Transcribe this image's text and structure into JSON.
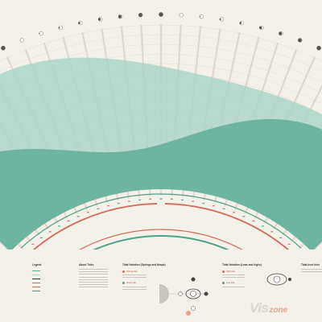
{
  "colors": {
    "background": "#f4f1ea",
    "tide_fill": "#5fae99",
    "tide_fill_light": "#a9d5c7",
    "spoke": "#e2cfc4",
    "accent_red": "#d26d57",
    "accent_teal": "#4fa08b",
    "moon": "#555555"
  },
  "chart_data": {
    "type": "area",
    "layout": "radial-fan",
    "spoke_count": 31,
    "moon_phase_icons": [
      "full-moon-icon",
      "waning-gibbous-icon",
      "last-quarter-icon",
      "waning-crescent-icon",
      "new-moon-icon",
      "waxing-crescent-icon",
      "first-quarter-icon",
      "waxing-gibbous-icon"
    ],
    "series": [
      {
        "name": "",
        "kind": "high-water-band"
      },
      {
        "name": "",
        "kind": "low-water-band"
      }
    ]
  },
  "panels": {
    "legend": {
      "title": "Legend"
    },
    "about": {
      "title": "About Tides"
    },
    "springs": {
      "title": "Tidal Variation (Springs and Neaps)",
      "item1": "Spring tide",
      "item2": "Neap tide"
    },
    "highlow": {
      "title": "Tidal Variation (Lows and highs)",
      "item1": "High tide",
      "item2": "Low tide"
    },
    "right": {
      "title": "Tidal level Inter"
    }
  },
  "logo": {
    "vis": "Vis",
    "zone": "zone"
  }
}
